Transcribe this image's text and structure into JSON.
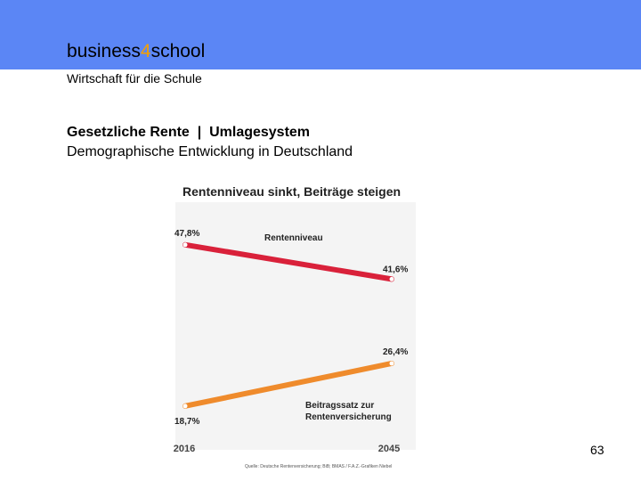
{
  "header": {
    "brand_prefix": "business",
    "brand_digit": "4",
    "brand_suffix": "school",
    "tagline": "Wirtschaft für die Schule",
    "colors": {
      "bar": "#5b86f5",
      "accent": "#f5a000"
    }
  },
  "slide": {
    "title": "Gesetzliche Rente  |  Umlagesystem",
    "subtitle": "Demographische Entwicklung in Deutschland",
    "page_number": "63"
  },
  "chart_data": {
    "type": "line",
    "title": "Rentenniveau sinkt, Beiträge steigen",
    "x": [
      "2016",
      "2045"
    ],
    "series": [
      {
        "name": "Rentenniveau",
        "values": [
          47.8,
          41.6
        ],
        "labels": [
          "47,8%",
          "41,6%"
        ],
        "color": "#d9213a"
      },
      {
        "name": "Beitragssatz zur Rentenversicherung",
        "values": [
          18.7,
          26.4
        ],
        "labels": [
          "18,7%",
          "26,4%"
        ],
        "color": "#ef8b2c"
      }
    ],
    "series_label_lines": [
      "Rentenniveau",
      "Beitragssatz zur",
      "Rentenversicherung"
    ],
    "source": "Quelle: Deutsche Rentenversicherung; BiB; BMAS / F.A.Z.-Grafiken Niebel"
  }
}
